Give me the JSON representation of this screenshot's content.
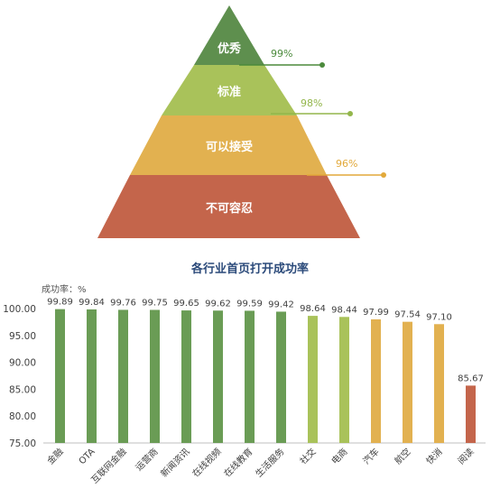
{
  "pyramid": {
    "tiers": [
      {
        "label": "优秀",
        "rate": "99%",
        "color": "#5e8f4e",
        "line_color": "#4b8a3c"
      },
      {
        "label": "标准",
        "rate": "98%",
        "color": "#a9c25a",
        "line_color": "#93b64b"
      },
      {
        "label": "可以接受",
        "rate": "96%",
        "color": "#e2b150",
        "line_color": "#e2a93a"
      },
      {
        "label": "不可容忍",
        "rate": "",
        "color": "#c4654b",
        "line_color": "#c4654b"
      }
    ]
  },
  "chart_data": {
    "type": "bar",
    "title": "各行业首页打开成功率",
    "ylabel": "成功率：%",
    "xlabel": "",
    "ylim": [
      75,
      100
    ],
    "yticks": [
      "75.00",
      "80.00",
      "85.00",
      "90.00",
      "95.00",
      "100.00"
    ],
    "categories": [
      "金融",
      "OTA",
      "互联网金融",
      "运营商",
      "新闻资讯",
      "在线视频",
      "在线教育",
      "生活服务",
      "社交",
      "电商",
      "汽车",
      "航空",
      "快消",
      "阅读"
    ],
    "values": [
      99.89,
      99.84,
      99.76,
      99.75,
      99.65,
      99.62,
      99.59,
      99.42,
      98.64,
      98.44,
      97.99,
      97.54,
      97.1,
      85.67
    ],
    "value_labels": [
      "99.89",
      "99.84",
      "99.76",
      "99.75",
      "99.65",
      "99.62",
      "99.59",
      "99.42",
      "98.64",
      "98.44",
      "97.99",
      "97.54",
      "97.10",
      "85.67"
    ],
    "colors": [
      "#6a9c55",
      "#6a9c55",
      "#6a9c55",
      "#6a9c55",
      "#6a9c55",
      "#6a9c55",
      "#6a9c55",
      "#6a9c55",
      "#a9c25a",
      "#a9c25a",
      "#e2b150",
      "#e2b150",
      "#e2b150",
      "#c4654b"
    ],
    "grid": false,
    "legend": "none"
  }
}
